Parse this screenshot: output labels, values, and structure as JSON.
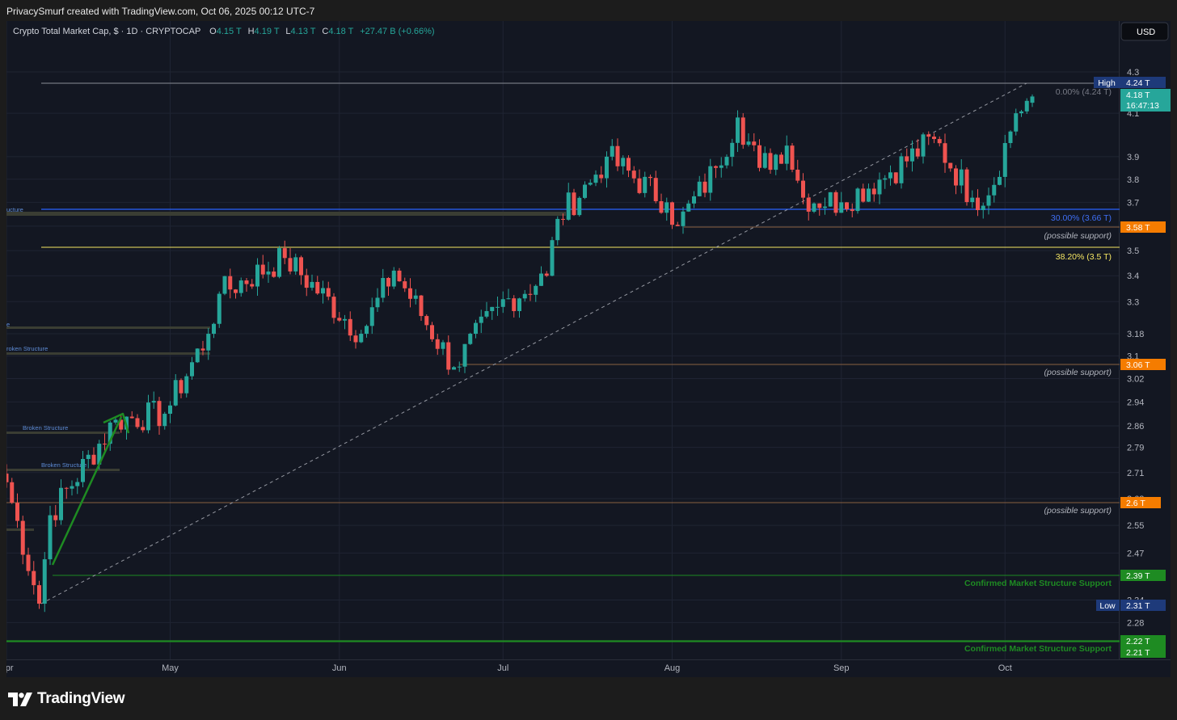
{
  "header": {
    "credit": "PrivacySmurf created with TradingView.com, Oct 06, 2025 00:12 UTC-7"
  },
  "legend": {
    "symbol": "Crypto Total Market Cap, $ · 1D · CRYPTOCAP",
    "o_label": "O",
    "o_value": "4.15 T",
    "h_label": "H",
    "h_value": "4.19 T",
    "l_label": "L",
    "l_value": "4.13 T",
    "c_label": "C",
    "c_value": "4.18 T",
    "change": "+27.47 B (+0.66%)"
  },
  "currency_button": "USD",
  "brand": {
    "name": "TradingView"
  },
  "colors": {
    "background": "#131722",
    "up": "#26a69a",
    "down": "#ef5350",
    "grid": "#1f2433",
    "axis_text": "#b2b5be",
    "blue_line": "#2962ff",
    "yellow_line": "#f5e663",
    "orange": "#f57c00",
    "green": "#1e8b22",
    "navy": "#1e3a7a"
  },
  "annotations": {
    "high_tag": "High",
    "high_value": "4.24 T",
    "price_value": "4.18 T",
    "price_countdown": "16:47:13",
    "fib0_label": "0.00% (4.24 T)",
    "fib30_label": "30.00% (3.66 T)",
    "fib382_label": "38.20% (3.5 T)",
    "support_tag_1": "3.58 T",
    "support_tag_2": "3.06 T",
    "support_tag_3": "2.6 T",
    "possible_support": "(possible support)",
    "confirmed_tag_1": "2.39 T",
    "confirmed_tag_2": "2.22 T",
    "confirmed_tag_3": "2.21 T",
    "confirmed_label": "Confirmed Market Structure Support",
    "low_tag": "Low",
    "low_value": "2.31 T",
    "structure_labels": [
      "ucture",
      "e",
      "roken Structure",
      "Broken Structure",
      "Broken Structure"
    ]
  },
  "chart_data": {
    "type": "candlestick",
    "title": "Crypto Total Market Cap, $ · 1D · CRYPTOCAP",
    "xlabel": "",
    "ylabel": "",
    "y_ticks": [
      "4.3",
      "4.1",
      "3.9",
      "3.8",
      "3.7",
      "3.6",
      "3.5",
      "3.4",
      "3.3",
      "3.18",
      "3.1",
      "3.02",
      "2.94",
      "2.86",
      "2.79",
      "2.71",
      "2.63",
      "2.55",
      "2.47",
      "2.34",
      "2.28"
    ],
    "x_ticks": [
      "Apr",
      "May",
      "Jun",
      "Jul",
      "Aug",
      "Sep",
      "Oct"
    ],
    "x_tick_dates": [
      "2025-04-01",
      "2025-05-01",
      "2025-06-01",
      "2025-07-01",
      "2025-08-01",
      "2025-09-01",
      "2025-10-01"
    ],
    "y_scale": "log",
    "ylim": [
      2.2,
      4.35
    ],
    "xlim": [
      "2025-04-01",
      "2025-10-21"
    ],
    "grid": true,
    "levels": [
      {
        "label": "High",
        "value": 4.24
      },
      {
        "label": "30.00% (3.66 T)",
        "value": 3.66
      },
      {
        "label": "(possible support)",
        "value": 3.58
      },
      {
        "label": "38.20% (3.5 T)",
        "value": 3.5
      },
      {
        "label": "(possible support)",
        "value": 3.06
      },
      {
        "label": "(possible support)",
        "value": 2.6
      },
      {
        "label": "Confirmed Market Structure Support",
        "value": 2.39
      },
      {
        "label": "Low",
        "value": 2.31
      },
      {
        "label": "Confirmed Market Structure Support",
        "value": 2.22
      }
    ],
    "keypoints": [
      {
        "date": "2025-04-01",
        "close": 2.68
      },
      {
        "date": "2025-04-07",
        "close": 2.33
      },
      {
        "date": "2025-04-09",
        "close": 2.58
      },
      {
        "date": "2025-04-21",
        "close": 2.88
      },
      {
        "date": "2025-04-30",
        "close": 2.9
      },
      {
        "date": "2025-05-08",
        "close": 3.18
      },
      {
        "date": "2025-05-10",
        "close": 3.33
      },
      {
        "date": "2025-05-22",
        "close": 3.47
      },
      {
        "date": "2025-06-05",
        "close": 3.18
      },
      {
        "date": "2025-06-11",
        "close": 3.42
      },
      {
        "date": "2025-06-22",
        "close": 3.06
      },
      {
        "date": "2025-06-30",
        "close": 3.28
      },
      {
        "date": "2025-07-09",
        "close": 3.4
      },
      {
        "date": "2025-07-11",
        "close": 3.63
      },
      {
        "date": "2025-07-18",
        "close": 3.82
      },
      {
        "date": "2025-07-20",
        "close": 3.9
      },
      {
        "date": "2025-07-31",
        "close": 3.7
      },
      {
        "date": "2025-08-02",
        "close": 3.6
      },
      {
        "date": "2025-08-09",
        "close": 3.85
      },
      {
        "date": "2025-08-13",
        "close": 4.08
      },
      {
        "date": "2025-08-17",
        "close": 3.85
      },
      {
        "date": "2025-08-22",
        "close": 3.95
      },
      {
        "date": "2025-08-25",
        "close": 3.72
      },
      {
        "date": "2025-09-01",
        "close": 3.7
      },
      {
        "date": "2025-09-10",
        "close": 3.83
      },
      {
        "date": "2025-09-18",
        "close": 3.98
      },
      {
        "date": "2025-09-25",
        "close": 3.72
      },
      {
        "date": "2025-09-28",
        "close": 3.73
      },
      {
        "date": "2025-10-03",
        "close": 4.1
      },
      {
        "date": "2025-10-06",
        "close": 4.18
      }
    ],
    "series": [
      {
        "name": "Crypto Total Market Cap",
        "last": {
          "open": 4.15,
          "high": 4.19,
          "low": 4.13,
          "close": 4.18
        }
      }
    ]
  }
}
